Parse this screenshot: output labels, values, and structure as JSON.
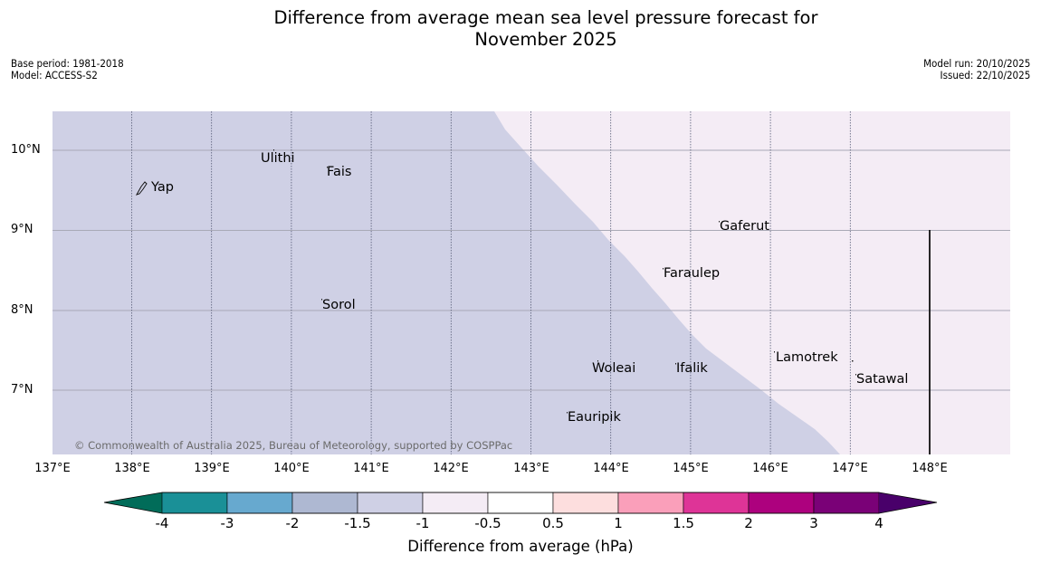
{
  "title": {
    "line1": "Difference from average mean sea level pressure forecast for",
    "line2": "November 2025"
  },
  "meta": {
    "base_period": "Base period: 1981-2018",
    "model": "Model: ACCESS-S2",
    "model_run": "Model run: 20/10/2025",
    "issued": "Issued: 22/10/2025"
  },
  "axes": {
    "lon_ticks": [
      "137°E",
      "138°E",
      "139°E",
      "140°E",
      "141°E",
      "142°E",
      "143°E",
      "144°E",
      "145°E",
      "146°E",
      "147°E",
      "148°E"
    ],
    "lat_ticks": [
      "10°N",
      "9°N",
      "8°N",
      "7°N"
    ]
  },
  "places": [
    {
      "name": "Yap"
    },
    {
      "name": "Ulithi"
    },
    {
      "name": "Fais"
    },
    {
      "name": "Gaferut"
    },
    {
      "name": "Faraulep"
    },
    {
      "name": "Sorol"
    },
    {
      "name": "Lamotrek"
    },
    {
      "name": "Woleai"
    },
    {
      "name": "Ifalik"
    },
    {
      "name": "Satawal"
    },
    {
      "name": "Eauripik"
    }
  ],
  "regions": [
    {
      "category": "-1.5 to -1",
      "color": "#cfd0e5",
      "location": "west of boundary"
    },
    {
      "category": "-1 to -0.5",
      "color": "#f4ecf5",
      "location": "east of boundary"
    }
  ],
  "copyright": "© Commonwealth of Australia 2025, Bureau of Meteorology, supported by COSPPac",
  "colorbar": {
    "title": "Difference from average (hPa)",
    "labels": [
      "-4",
      "-3",
      "-2",
      "-1.5",
      "-1",
      "-0.5",
      "0.5",
      "1",
      "1.5",
      "2",
      "3",
      "4"
    ],
    "colors": [
      "#1a9097",
      "#67a9cf",
      "#aeb8d2",
      "#cfd0e5",
      "#f4ecf5",
      "#ffffff",
      "#fddede",
      "#fa9fba",
      "#de3497",
      "#ad017e",
      "#7a0177"
    ],
    "low_extend_color": "#016c59",
    "high_extend_color": "#49006a"
  }
}
